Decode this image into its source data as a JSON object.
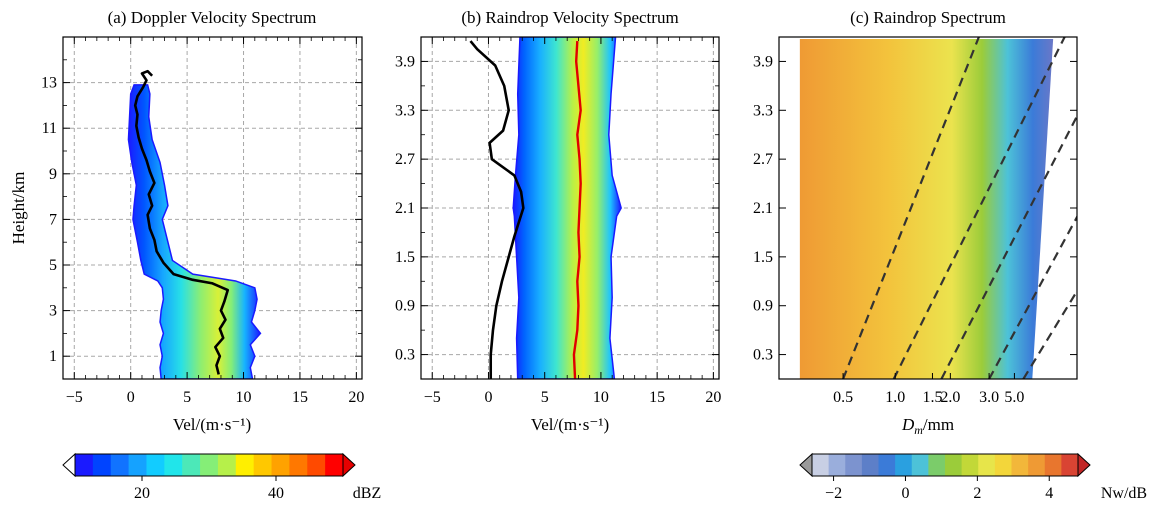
{
  "figure": {
    "colorbar_left": {
      "unit": "dBZ",
      "ticks": [
        20,
        40
      ],
      "range": [
        10,
        50
      ],
      "colors": [
        "#ffffff",
        "#1a1aff",
        "#0044ff",
        "#1173ff",
        "#15a2ff",
        "#12ccff",
        "#21e5ea",
        "#4ce8b8",
        "#85ee77",
        "#b6f04a",
        "#ffef00",
        "#ffc800",
        "#ffa200",
        "#ff7800",
        "#ff4a00",
        "#ff0000",
        "#e60000"
      ]
    },
    "colorbar_right": {
      "unit": "Nw/dB",
      "ticks": [
        "−2",
        "0",
        "2",
        "4"
      ],
      "tick_values": [
        -2,
        0,
        2,
        4
      ],
      "range": [
        -2.6,
        4.8
      ],
      "colors": [
        "#9a9a9a",
        "#c8cfe4",
        "#9aaedc",
        "#7c93cf",
        "#5d7fc8",
        "#3b7bd8",
        "#2aa0e0",
        "#4dc2d8",
        "#7bcc6a",
        "#9bcc3a",
        "#c2d838",
        "#e7e54a",
        "#f3d63a",
        "#f2b73a",
        "#ef9a34",
        "#e8762e",
        "#d94433",
        "#c12626"
      ]
    }
  },
  "chart_data": [
    {
      "type": "heatmap",
      "title": "(a) Doppler Velocity Spectrum",
      "xlabel": "Vel/(m·s⁻¹)",
      "ylabel": "Height/km",
      "xlim": [
        -6,
        20.5
      ],
      "ylim": [
        0,
        15
      ],
      "xticks": [
        -5,
        0,
        5,
        10,
        15,
        20
      ],
      "xtick_labels": [
        "−5",
        "0",
        "5",
        "10",
        "15",
        "20"
      ],
      "yticks": [
        1,
        3,
        5,
        7,
        9,
        11,
        13
      ],
      "yticks_major": [
        1,
        3,
        5,
        7,
        9,
        11,
        13
      ],
      "yticks_minor": [
        2,
        4,
        6,
        8,
        10,
        12,
        14
      ],
      "grid": true,
      "series": [
        {
          "role": "mean_velocity_line",
          "color": "#000000",
          "points": [
            [
              7.8,
              0.2
            ],
            [
              7.6,
              0.6
            ],
            [
              7.9,
              1.0
            ],
            [
              7.5,
              1.4
            ],
            [
              8.2,
              1.8
            ],
            [
              7.9,
              2.2
            ],
            [
              8.4,
              2.6
            ],
            [
              8.0,
              3.0
            ],
            [
              8.3,
              3.4
            ],
            [
              8.6,
              3.9
            ],
            [
              7.2,
              4.2
            ],
            [
              5.5,
              4.35
            ],
            [
              3.8,
              4.6
            ],
            [
              2.9,
              5.1
            ],
            [
              2.3,
              5.6
            ],
            [
              2.1,
              6.1
            ],
            [
              1.7,
              6.6
            ],
            [
              1.5,
              7.2
            ],
            [
              1.9,
              7.6
            ],
            [
              1.6,
              8.1
            ],
            [
              2.1,
              8.6
            ],
            [
              1.7,
              9.1
            ],
            [
              1.4,
              9.6
            ],
            [
              1.0,
              10.1
            ],
            [
              0.7,
              10.6
            ],
            [
              0.5,
              11.1
            ],
            [
              0.6,
              11.6
            ],
            [
              0.4,
              12.0
            ],
            [
              0.6,
              12.4
            ],
            [
              1.1,
              12.8
            ],
            [
              1.4,
              13.1
            ],
            [
              1.0,
              13.4
            ],
            [
              1.5,
              13.5
            ],
            [
              1.9,
              13.3
            ]
          ]
        },
        {
          "role": "spectrum_band",
          "rows": [
            {
              "h": 0.0,
              "l": 2.7,
              "r": 10.8
            },
            {
              "h": 0.5,
              "l": 2.6,
              "r": 10.6
            },
            {
              "h": 1.0,
              "l": 2.8,
              "r": 11.0
            },
            {
              "h": 1.5,
              "l": 2.6,
              "r": 10.6
            },
            {
              "h": 2.0,
              "l": 2.9,
              "r": 11.5
            },
            {
              "h": 2.5,
              "l": 2.6,
              "r": 10.7
            },
            {
              "h": 3.0,
              "l": 2.7,
              "r": 11.0
            },
            {
              "h": 3.5,
              "l": 2.9,
              "r": 11.2
            },
            {
              "h": 4.0,
              "l": 2.8,
              "r": 11.0
            },
            {
              "h": 4.3,
              "l": 2.4,
              "r": 9.3
            },
            {
              "h": 4.6,
              "l": 1.2,
              "r": 5.5
            },
            {
              "h": 5.2,
              "l": 0.9,
              "r": 3.7
            },
            {
              "h": 6.0,
              "l": 0.6,
              "r": 3.3
            },
            {
              "h": 7.0,
              "l": 0.2,
              "r": 2.8
            },
            {
              "h": 7.6,
              "l": 0.3,
              "r": 3.3
            },
            {
              "h": 8.5,
              "l": 0.5,
              "r": 3.0
            },
            {
              "h": 9.5,
              "l": 0.1,
              "r": 2.6
            },
            {
              "h": 10.5,
              "l": -0.2,
              "r": 1.9
            },
            {
              "h": 11.5,
              "l": -0.1,
              "r": 1.6
            },
            {
              "h": 12.5,
              "l": 0.0,
              "r": 1.7
            },
            {
              "h": 12.9,
              "l": 0.3,
              "r": 1.5
            }
          ]
        }
      ]
    },
    {
      "type": "heatmap",
      "title": "(b) Raindrop Velocity Spectrum",
      "xlabel": "Vel/(m·s⁻¹)",
      "ylabel": "",
      "xlim": [
        -6,
        20.5
      ],
      "ylim": [
        0,
        4.2
      ],
      "xticks": [
        -5,
        0,
        5,
        10,
        15,
        20
      ],
      "xtick_labels": [
        "−5",
        "0",
        "5",
        "10",
        "15",
        "20"
      ],
      "yticks": [
        0.3,
        0.9,
        1.5,
        2.1,
        2.7,
        3.3,
        3.9
      ],
      "ytick_labels": [
        "0.3",
        "0.9",
        "1.5",
        "2.1",
        "2.7",
        "3.3",
        "3.9"
      ],
      "yticks_major": [
        0.3,
        0.9,
        1.5,
        2.1,
        2.7,
        3.3,
        3.9
      ],
      "yticks_minor": [
        0.6,
        1.2,
        1.8,
        2.4,
        3.0,
        3.6
      ],
      "grid": true,
      "series": [
        {
          "role": "left_profile",
          "color": "#000000",
          "points": [
            [
              0.2,
              0.0
            ],
            [
              0.2,
              0.3
            ],
            [
              0.4,
              0.6
            ],
            [
              0.7,
              0.9
            ],
            [
              1.2,
              1.2
            ],
            [
              1.8,
              1.5
            ],
            [
              2.3,
              1.75
            ],
            [
              3.1,
              2.1
            ],
            [
              2.9,
              2.3
            ],
            [
              2.3,
              2.5
            ],
            [
              0.3,
              2.7
            ],
            [
              0.1,
              2.9
            ],
            [
              1.3,
              3.05
            ],
            [
              1.8,
              3.3
            ],
            [
              1.4,
              3.6
            ],
            [
              0.6,
              3.85
            ],
            [
              -1.0,
              4.05
            ],
            [
              -1.6,
              4.15
            ]
          ]
        },
        {
          "role": "mean_velocity_line",
          "color": "#e00000",
          "points": [
            [
              7.7,
              0.0
            ],
            [
              7.6,
              0.3
            ],
            [
              7.9,
              0.6
            ],
            [
              8.0,
              0.9
            ],
            [
              7.9,
              1.2
            ],
            [
              8.1,
              1.5
            ],
            [
              8.0,
              1.8
            ],
            [
              8.1,
              2.1
            ],
            [
              8.2,
              2.4
            ],
            [
              8.1,
              2.7
            ],
            [
              7.9,
              3.0
            ],
            [
              8.2,
              3.3
            ],
            [
              8.0,
              3.6
            ],
            [
              7.8,
              3.9
            ],
            [
              7.9,
              4.15
            ]
          ]
        },
        {
          "role": "spectrum_band",
          "rows": [
            {
              "h": 0.0,
              "l": 2.6,
              "r": 11.2
            },
            {
              "h": 0.5,
              "l": 2.5,
              "r": 10.8
            },
            {
              "h": 1.0,
              "l": 2.7,
              "r": 11.0
            },
            {
              "h": 1.5,
              "l": 2.5,
              "r": 10.9
            },
            {
              "h": 2.0,
              "l": 2.3,
              "r": 11.4
            },
            {
              "h": 2.1,
              "l": 2.2,
              "r": 11.8
            },
            {
              "h": 2.5,
              "l": 2.4,
              "r": 11.0
            },
            {
              "h": 3.0,
              "l": 2.7,
              "r": 10.7
            },
            {
              "h": 3.5,
              "l": 2.6,
              "r": 10.9
            },
            {
              "h": 4.2,
              "l": 2.8,
              "r": 11.3
            }
          ]
        }
      ]
    },
    {
      "type": "heatmap",
      "title": "(c) Raindrop Spectrum",
      "xlabel": "D",
      "xlabel_sub": "m",
      "xlabel_unit": "/mm",
      "ylabel": "",
      "ylim": [
        0,
        4.2
      ],
      "yticks": [
        0.3,
        0.9,
        1.5,
        2.1,
        2.7,
        3.3,
        3.9
      ],
      "ytick_labels": [
        "0.3",
        "0.9",
        "1.5",
        "2.1",
        "2.7",
        "3.3",
        "3.9"
      ],
      "xtick_labels": [
        "0.5",
        "1.0",
        "1.5",
        "2.0",
        "3.0",
        "5.0"
      ],
      "xticks_frac": [
        0.215,
        0.39,
        0.515,
        0.575,
        0.705,
        0.79
      ],
      "dashed_lines_frac": [
        [
          0.215,
          0.95
        ],
        [
          0.385,
          1.31
        ],
        [
          0.545,
          1.5
        ],
        [
          0.705,
          1.71
        ],
        [
          0.82,
          1.95
        ]
      ],
      "grid": false
    }
  ]
}
